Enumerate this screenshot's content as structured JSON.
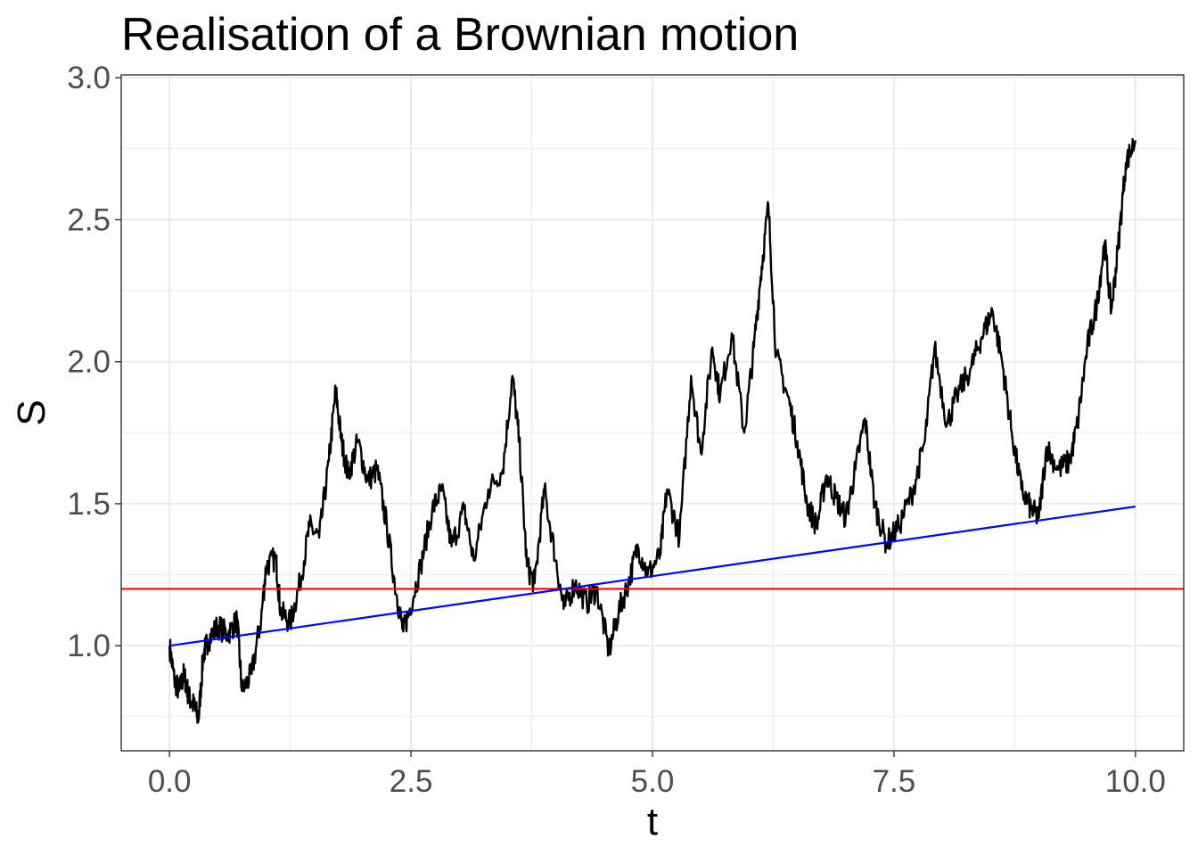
{
  "chart_data": {
    "type": "line",
    "title": "Realisation of a Brownian motion",
    "xlabel": "t",
    "ylabel": "S",
    "xlim": [
      -0.5,
      10.5
    ],
    "ylim": [
      0.63,
      3.01
    ],
    "x_ticks": [
      "0.0",
      "2.5",
      "5.0",
      "7.5",
      "10.0"
    ],
    "y_ticks": [
      "1.0",
      "1.5",
      "2.0",
      "2.5",
      "3.0"
    ],
    "grid": true,
    "legend": "none",
    "series": [
      {
        "color": "#000000",
        "style": "path",
        "points": [
          [
            0.0,
            1.0
          ],
          [
            0.05,
            0.88
          ],
          [
            0.1,
            0.84
          ],
          [
            0.15,
            0.9
          ],
          [
            0.2,
            0.82
          ],
          [
            0.25,
            0.79
          ],
          [
            0.3,
            0.74
          ],
          [
            0.35,
            0.97
          ],
          [
            0.4,
            1.02
          ],
          [
            0.5,
            1.07
          ],
          [
            0.6,
            1.04
          ],
          [
            0.7,
            1.09
          ],
          [
            0.75,
            0.84
          ],
          [
            0.85,
            0.9
          ],
          [
            0.95,
            1.1
          ],
          [
            1.0,
            1.28
          ],
          [
            1.1,
            1.31
          ],
          [
            1.15,
            1.12
          ],
          [
            1.25,
            1.08
          ],
          [
            1.35,
            1.22
          ],
          [
            1.45,
            1.42
          ],
          [
            1.55,
            1.38
          ],
          [
            1.65,
            1.65
          ],
          [
            1.72,
            1.9
          ],
          [
            1.78,
            1.72
          ],
          [
            1.85,
            1.6
          ],
          [
            1.95,
            1.72
          ],
          [
            2.05,
            1.58
          ],
          [
            2.15,
            1.62
          ],
          [
            2.25,
            1.42
          ],
          [
            2.35,
            1.18
          ],
          [
            2.42,
            1.05
          ],
          [
            2.48,
            1.12
          ],
          [
            2.6,
            1.28
          ],
          [
            2.72,
            1.48
          ],
          [
            2.82,
            1.55
          ],
          [
            2.92,
            1.35
          ],
          [
            3.05,
            1.48
          ],
          [
            3.15,
            1.3
          ],
          [
            3.3,
            1.55
          ],
          [
            3.45,
            1.62
          ],
          [
            3.55,
            1.95
          ],
          [
            3.62,
            1.72
          ],
          [
            3.7,
            1.28
          ],
          [
            3.78,
            1.22
          ],
          [
            3.88,
            1.55
          ],
          [
            4.0,
            1.3
          ],
          [
            4.08,
            1.13
          ],
          [
            4.2,
            1.22
          ],
          [
            4.32,
            1.15
          ],
          [
            4.42,
            1.2
          ],
          [
            4.55,
            0.98
          ],
          [
            4.65,
            1.12
          ],
          [
            4.75,
            1.22
          ],
          [
            4.85,
            1.35
          ],
          [
            4.95,
            1.25
          ],
          [
            5.08,
            1.32
          ],
          [
            5.15,
            1.55
          ],
          [
            5.28,
            1.38
          ],
          [
            5.4,
            1.95
          ],
          [
            5.5,
            1.68
          ],
          [
            5.62,
            2.05
          ],
          [
            5.7,
            1.88
          ],
          [
            5.82,
            2.1
          ],
          [
            5.95,
            1.75
          ],
          [
            6.05,
            2.05
          ],
          [
            6.12,
            2.3
          ],
          [
            6.2,
            2.55
          ],
          [
            6.28,
            2.02
          ],
          [
            6.4,
            1.88
          ],
          [
            6.5,
            1.72
          ],
          [
            6.6,
            1.5
          ],
          [
            6.7,
            1.42
          ],
          [
            6.8,
            1.6
          ],
          [
            6.9,
            1.52
          ],
          [
            7.0,
            1.45
          ],
          [
            7.1,
            1.62
          ],
          [
            7.2,
            1.8
          ],
          [
            7.3,
            1.5
          ],
          [
            7.42,
            1.36
          ],
          [
            7.55,
            1.42
          ],
          [
            7.7,
            1.55
          ],
          [
            7.82,
            1.72
          ],
          [
            7.92,
            2.05
          ],
          [
            8.05,
            1.78
          ],
          [
            8.15,
            1.88
          ],
          [
            8.3,
            1.98
          ],
          [
            8.4,
            2.08
          ],
          [
            8.52,
            2.18
          ],
          [
            8.62,
            2.0
          ],
          [
            8.72,
            1.75
          ],
          [
            8.82,
            1.55
          ],
          [
            8.92,
            1.48
          ],
          [
            9.0,
            1.45
          ],
          [
            9.08,
            1.7
          ],
          [
            9.2,
            1.62
          ],
          [
            9.32,
            1.65
          ],
          [
            9.4,
            1.78
          ],
          [
            9.5,
            2.05
          ],
          [
            9.6,
            2.2
          ],
          [
            9.68,
            2.42
          ],
          [
            9.75,
            2.18
          ],
          [
            9.82,
            2.4
          ],
          [
            9.9,
            2.7
          ],
          [
            10.0,
            2.78
          ]
        ]
      },
      {
        "color": "#ff0000",
        "style": "hline",
        "y": 1.2
      },
      {
        "color": "#0000ff",
        "style": "line",
        "points": [
          [
            0.0,
            1.0
          ],
          [
            10.0,
            1.49
          ]
        ]
      }
    ]
  }
}
